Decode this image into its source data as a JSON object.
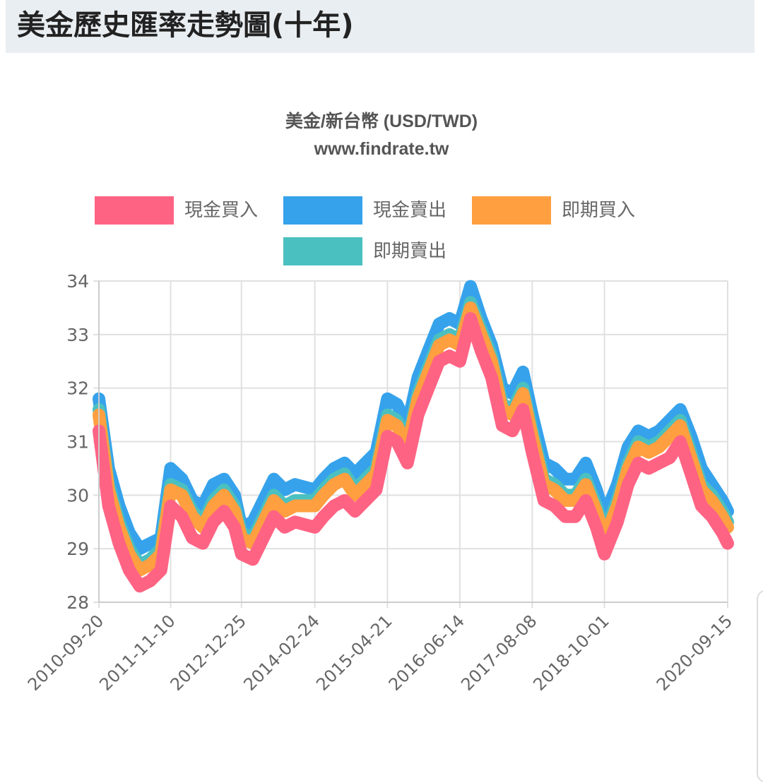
{
  "page": {
    "title": "美金歷史匯率走勢圖(十年)"
  },
  "chart_data": {
    "type": "area",
    "title": "美金/新台幣 (USD/TWD)",
    "subtitle": "www.findrate.tw",
    "x_tick_labels": [
      "2010-09-20",
      "2011-11-10",
      "2012-12-25",
      "2014-02-24",
      "2015-04-21",
      "2016-06-14",
      "2017-08-08",
      "2018-10-01",
      "2020-09-15"
    ],
    "ylim": [
      28,
      34
    ],
    "y_ticks": [
      28,
      29,
      30,
      31,
      32,
      33,
      34
    ],
    "grid": true,
    "legend_placement": "top",
    "x": [
      "2010-09-20",
      "2010-11-15",
      "2011-01-15",
      "2011-03-15",
      "2011-05-15",
      "2011-07-15",
      "2011-09-15",
      "2011-11-10",
      "2012-01-15",
      "2012-03-15",
      "2012-05-15",
      "2012-07-15",
      "2012-09-15",
      "2012-11-15",
      "2012-12-25",
      "2013-03-01",
      "2013-05-01",
      "2013-07-01",
      "2013-09-01",
      "2013-11-01",
      "2014-02-24",
      "2014-04-15",
      "2014-06-15",
      "2014-08-15",
      "2014-10-15",
      "2014-12-15",
      "2015-02-15",
      "2015-04-21",
      "2015-06-15",
      "2015-08-15",
      "2015-10-15",
      "2015-12-15",
      "2016-02-15",
      "2016-04-15",
      "2016-06-14",
      "2016-08-15",
      "2016-10-15",
      "2016-12-15",
      "2017-02-15",
      "2017-04-15",
      "2017-06-15",
      "2017-08-08",
      "2017-10-15",
      "2017-12-15",
      "2018-02-15",
      "2018-04-15",
      "2018-06-15",
      "2018-08-15",
      "2018-10-01",
      "2018-12-15",
      "2019-02-15",
      "2019-04-15",
      "2019-06-15",
      "2019-08-15",
      "2019-10-15",
      "2019-12-15",
      "2020-02-15",
      "2020-04-15",
      "2020-06-15",
      "2020-08-15",
      "2020-09-15"
    ],
    "series": [
      {
        "name": "現金買入",
        "color": "#ff6384",
        "values": [
          31.2,
          29.8,
          29.1,
          28.6,
          28.3,
          28.4,
          28.6,
          29.8,
          29.6,
          29.2,
          29.1,
          29.5,
          29.7,
          29.4,
          28.9,
          28.8,
          29.2,
          29.6,
          29.4,
          29.5,
          29.4,
          29.6,
          29.8,
          29.9,
          29.7,
          29.9,
          30.1,
          31.1,
          31.0,
          30.6,
          31.5,
          32.0,
          32.5,
          32.6,
          32.5,
          33.3,
          32.7,
          32.2,
          31.3,
          31.2,
          31.6,
          30.8,
          29.9,
          29.8,
          29.6,
          29.6,
          29.9,
          29.4,
          28.9,
          29.5,
          30.2,
          30.6,
          30.5,
          30.6,
          30.7,
          31.0,
          30.4,
          29.8,
          29.6,
          29.3,
          29.1
        ]
      },
      {
        "name": "現金賣出",
        "color": "#36a2eb",
        "values": [
          31.8,
          30.5,
          29.8,
          29.3,
          29.0,
          29.1,
          29.2,
          30.5,
          30.3,
          29.9,
          29.8,
          30.2,
          30.3,
          30.0,
          29.4,
          29.5,
          29.9,
          30.3,
          30.1,
          30.2,
          30.1,
          30.3,
          30.5,
          30.6,
          30.4,
          30.6,
          30.8,
          31.8,
          31.7,
          31.3,
          32.2,
          32.7,
          33.2,
          33.3,
          33.2,
          33.9,
          33.3,
          32.8,
          32.0,
          31.9,
          32.3,
          31.5,
          30.6,
          30.5,
          30.3,
          30.3,
          30.6,
          30.1,
          29.6,
          30.2,
          30.9,
          31.2,
          31.1,
          31.2,
          31.4,
          31.6,
          31.1,
          30.5,
          30.2,
          29.9,
          29.7
        ]
      },
      {
        "name": "即期買入",
        "color": "#ff9f40",
        "values": [
          31.5,
          30.1,
          29.4,
          28.9,
          28.6,
          28.7,
          28.9,
          30.1,
          30.0,
          29.6,
          29.4,
          29.8,
          30.0,
          29.7,
          29.2,
          29.1,
          29.5,
          29.9,
          29.7,
          29.8,
          29.8,
          30.0,
          30.2,
          30.3,
          30.0,
          30.2,
          30.4,
          31.4,
          31.3,
          30.9,
          31.8,
          32.3,
          32.8,
          32.9,
          32.8,
          33.5,
          33.0,
          32.5,
          31.6,
          31.5,
          31.9,
          31.1,
          30.2,
          30.1,
          29.9,
          29.9,
          30.2,
          29.7,
          29.2,
          29.8,
          30.5,
          30.9,
          30.8,
          30.9,
          31.1,
          31.3,
          30.7,
          30.1,
          29.9,
          29.6,
          29.4
        ]
      },
      {
        "name": "即期賣出",
        "color": "#4bc0c0",
        "values": [
          31.6,
          30.2,
          29.5,
          29.0,
          28.7,
          28.8,
          29.0,
          30.2,
          30.1,
          29.7,
          29.5,
          29.9,
          30.1,
          29.8,
          29.3,
          29.2,
          29.6,
          30.0,
          29.8,
          29.9,
          29.9,
          30.1,
          30.3,
          30.4,
          30.1,
          30.3,
          30.5,
          31.5,
          31.4,
          31.0,
          31.9,
          32.4,
          32.9,
          33.0,
          32.9,
          33.6,
          33.1,
          32.6,
          31.7,
          31.6,
          32.0,
          31.2,
          30.3,
          30.2,
          30.0,
          30.0,
          30.3,
          29.8,
          29.3,
          29.9,
          30.6,
          31.0,
          30.9,
          31.0,
          31.2,
          31.4,
          30.8,
          30.2,
          30.0,
          29.7,
          29.5
        ]
      }
    ]
  }
}
